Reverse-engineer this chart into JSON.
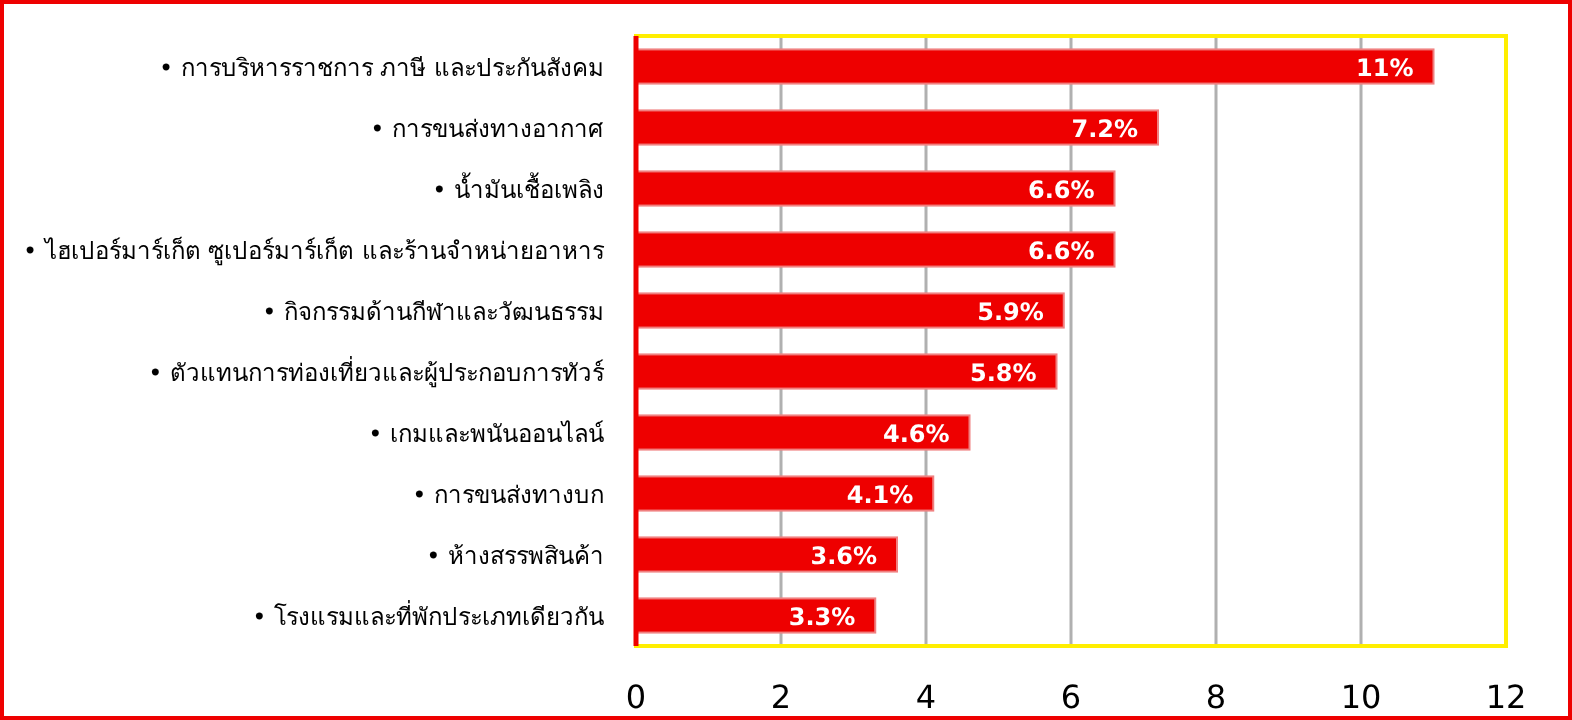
{
  "chart_data": {
    "type": "bar",
    "orientation": "horizontal",
    "categories": [
      "• การบริหารราชการ ภาษี และประกันสังคม",
      "• การขนส่งทางอากาศ",
      "• น้ำมันเชื้อเพลิง",
      "• ไฮเปอร์มาร์เก็ต ซูเปอร์มาร์เก็ต และร้านจำหน่ายอาหาร",
      "• กิจกรรมด้านกีฬาและวัฒนธรรม",
      "• ตัวแทนการท่องเที่ยวและผู้ประกอบการทัวร์",
      "• เกมและพนันออนไลน์",
      "• การขนส่งทางบก",
      "• ห้างสรรพสินค้า",
      "• โรงแรมและที่พักประเภทเดียวกัน"
    ],
    "values": [
      11,
      7.2,
      6.6,
      6.6,
      5.9,
      5.8,
      4.6,
      4.1,
      3.6,
      3.3
    ],
    "value_labels": [
      "11%",
      "7.2%",
      "6.6%",
      "6.6%",
      "5.9%",
      "5.8%",
      "4.6%",
      "4.1%",
      "3.6%",
      "3.3%"
    ],
    "color": "#ee0000",
    "xlim": [
      0,
      12
    ],
    "xticks": [
      0,
      2,
      4,
      6,
      8,
      10,
      12
    ],
    "grid": "x"
  }
}
